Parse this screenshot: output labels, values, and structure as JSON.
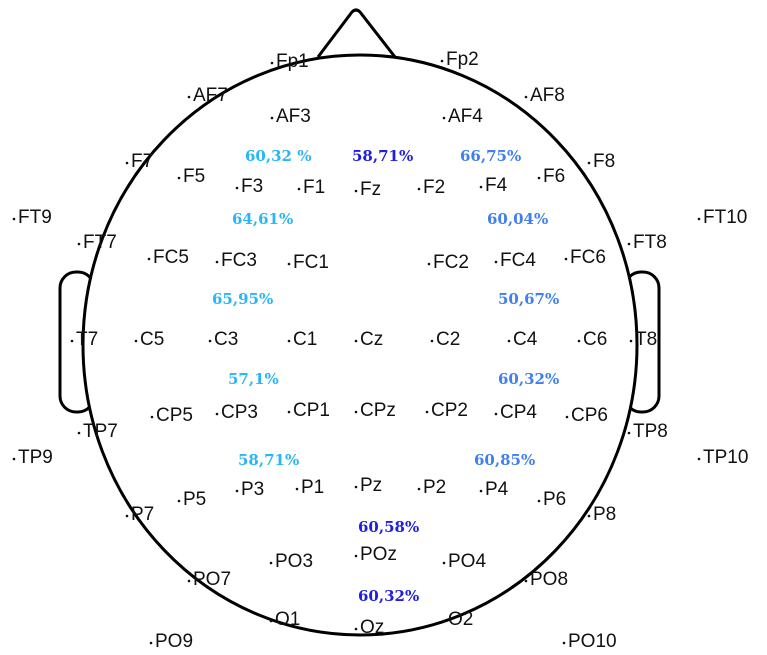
{
  "electrodes": [
    "Fp1",
    "Fp2",
    "AF7",
    "AF8",
    "AF3",
    "AF4",
    "F7",
    "F5",
    "F3",
    "F1",
    "Fz",
    "F2",
    "F4",
    "F6",
    "F8",
    "FT9",
    "FT10",
    "FT7",
    "FC5",
    "FC3",
    "FC1",
    "FC2",
    "FC4",
    "FC6",
    "FT8",
    "T7",
    "C5",
    "C3",
    "C1",
    "Cz",
    "C2",
    "C4",
    "C6",
    "T8",
    "TP7",
    "CP5",
    "CP3",
    "CP1",
    "CPz",
    "CP2",
    "CP4",
    "CP6",
    "TP8",
    "TP9",
    "TP10",
    "P7",
    "P5",
    "P3",
    "P1",
    "Pz",
    "P2",
    "P4",
    "P6",
    "P8",
    "PO7",
    "PO3",
    "POz",
    "PO4",
    "PO8",
    "O1",
    "Oz",
    "O2",
    "PO9",
    "PO10"
  ],
  "percentages": [
    {
      "label": "60,32 %",
      "color": "#29b6f6"
    },
    {
      "label": "58,71%",
      "color": "#1f1fe0"
    },
    {
      "label": "66,75%",
      "color": "#3f7ff0"
    },
    {
      "label": "64,61%",
      "color": "#29b6f6"
    },
    {
      "label": "60,04%",
      "color": "#3f7ff0"
    },
    {
      "label": "65,95%",
      "color": "#29b6f6"
    },
    {
      "label": "50,67%",
      "color": "#3f7ff0"
    },
    {
      "label": "57,1%",
      "color": "#29b6f6"
    },
    {
      "label": "60,32%",
      "color": "#3f7ff0"
    },
    {
      "label": "58,71%",
      "color": "#29b6f6"
    },
    {
      "label": "60,85%",
      "color": "#3f7ff0"
    },
    {
      "label": "60,58%",
      "color": "#1f1fe0"
    },
    {
      "label": "60,32%",
      "color": "#1f1fe0"
    }
  ]
}
